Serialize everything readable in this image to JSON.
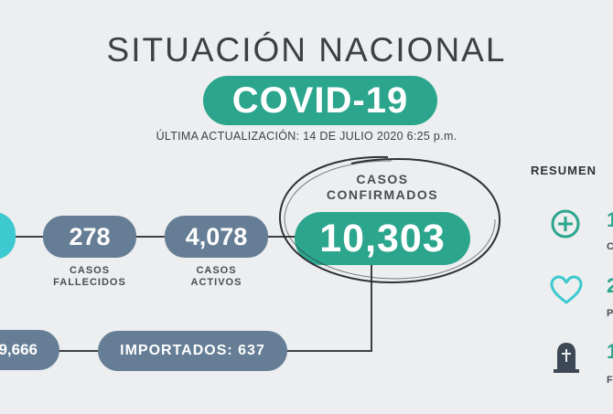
{
  "header": {
    "title": "SITUACIÓN NACIONAL",
    "badge": "COVID-19",
    "updated": "ÚLTIMA ACTUALIZACIÓN: 14 DE JULIO 2020 6:25 p.m."
  },
  "stats": {
    "deaths": {
      "value": "278",
      "label_line1": "CASOS",
      "label_line2": "FALLECIDOS"
    },
    "active": {
      "value": "4,078",
      "label_line1": "CASOS",
      "label_line2": "ACTIVOS"
    },
    "confirmed": {
      "value": "10,303",
      "label_line1": "CASOS",
      "label_line2": "CONFIRMADOS"
    },
    "left_partial": {
      "value": "9,666"
    },
    "imported": {
      "label": "IMPORTADOS: 637"
    }
  },
  "sidebar": {
    "title": "RESUMEN",
    "items": [
      {
        "icon": "plus-circle-icon",
        "stub": "1",
        "sub": "C"
      },
      {
        "icon": "heart-icon",
        "stub": "2",
        "sub": "P"
      },
      {
        "icon": "tombstone-icon",
        "stub": "1",
        "sub": "F"
      }
    ]
  },
  "colors": {
    "teal": "#2ca58d",
    "slate": "#657d95",
    "cyan": "#3cc9cf",
    "background": "#eceef0",
    "text": "#3d3f44"
  }
}
